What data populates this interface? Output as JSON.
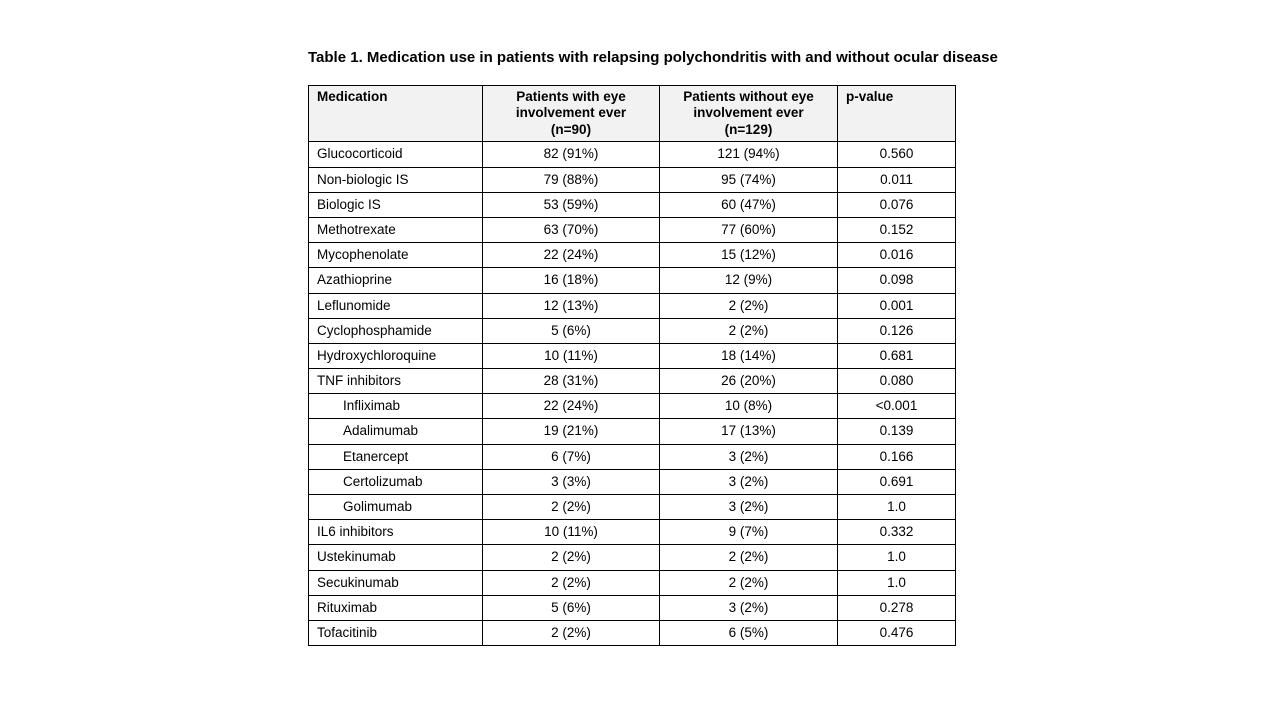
{
  "page": {
    "title": "Table 1. Medication use in patients with relapsing polychondritis with and without ocular disease"
  },
  "colors": {
    "background": "#ffffff",
    "header_bg": "#f2f2f2",
    "border": "#000000"
  },
  "table": {
    "headers": [
      {
        "label": "Medication",
        "align": "left"
      },
      {
        "label": "Patients with eye\ninvolvement ever\n(n=90)",
        "align": "center"
      },
      {
        "label": "Patients without eye\ninvolvement ever\n(n=129)",
        "align": "center"
      },
      {
        "label": "p-value",
        "align": "left"
      }
    ],
    "rows": [
      {
        "medication": "Glucocorticoid",
        "eye": "82 (91%)",
        "no_eye": "121 (94%)",
        "p": "0.560",
        "indent": false
      },
      {
        "medication": "Non-biologic IS",
        "eye": "79 (88%)",
        "no_eye": "95 (74%)",
        "p": "0.011",
        "indent": false
      },
      {
        "medication": "Biologic IS",
        "eye": "53 (59%)",
        "no_eye": "60 (47%)",
        "p": "0.076",
        "indent": false
      },
      {
        "medication": "Methotrexate",
        "eye": "63 (70%)",
        "no_eye": "77 (60%)",
        "p": "0.152",
        "indent": false
      },
      {
        "medication": "Mycophenolate",
        "eye": "22 (24%)",
        "no_eye": "15 (12%)",
        "p": "0.016",
        "indent": false
      },
      {
        "medication": "Azathioprine",
        "eye": "16 (18%)",
        "no_eye": "12 (9%)",
        "p": "0.098",
        "indent": false
      },
      {
        "medication": "Leflunomide",
        "eye": "12 (13%)",
        "no_eye": "2 (2%)",
        "p": "0.001",
        "indent": false
      },
      {
        "medication": "Cyclophosphamide",
        "eye": "5 (6%)",
        "no_eye": "2 (2%)",
        "p": "0.126",
        "indent": false
      },
      {
        "medication": "Hydroxychloroquine",
        "eye": "10 (11%)",
        "no_eye": "18 (14%)",
        "p": "0.681",
        "indent": false
      },
      {
        "medication": "TNF inhibitors",
        "eye": "28 (31%)",
        "no_eye": "26 (20%)",
        "p": "0.080",
        "indent": false
      },
      {
        "medication": "Infliximab",
        "eye": "22 (24%)",
        "no_eye": "10 (8%)",
        "p": "<0.001",
        "indent": true
      },
      {
        "medication": "Adalimumab",
        "eye": "19 (21%)",
        "no_eye": "17 (13%)",
        "p": "0.139",
        "indent": true
      },
      {
        "medication": "Etanercept",
        "eye": "6 (7%)",
        "no_eye": "3 (2%)",
        "p": "0.166",
        "indent": true
      },
      {
        "medication": "Certolizumab",
        "eye": "3 (3%)",
        "no_eye": "3 (2%)",
        "p": "0.691",
        "indent": true
      },
      {
        "medication": "Golimumab",
        "eye": "2 (2%)",
        "no_eye": "3 (2%)",
        "p": "1.0",
        "indent": true
      },
      {
        "medication": "IL6 inhibitors",
        "eye": "10 (11%)",
        "no_eye": "9 (7%)",
        "p": "0.332",
        "indent": false
      },
      {
        "medication": "Ustekinumab",
        "eye": "2 (2%)",
        "no_eye": "2 (2%)",
        "p": "1.0",
        "indent": false
      },
      {
        "medication": "Secukinumab",
        "eye": "2 (2%)",
        "no_eye": "2 (2%)",
        "p": "1.0",
        "indent": false
      },
      {
        "medication": "Rituximab",
        "eye": "5 (6%)",
        "no_eye": "3 (2%)",
        "p": "0.278",
        "indent": false
      },
      {
        "medication": "Tofacitinib",
        "eye": "2 (2%)",
        "no_eye": "6 (5%)",
        "p": "0.476",
        "indent": false
      }
    ]
  }
}
